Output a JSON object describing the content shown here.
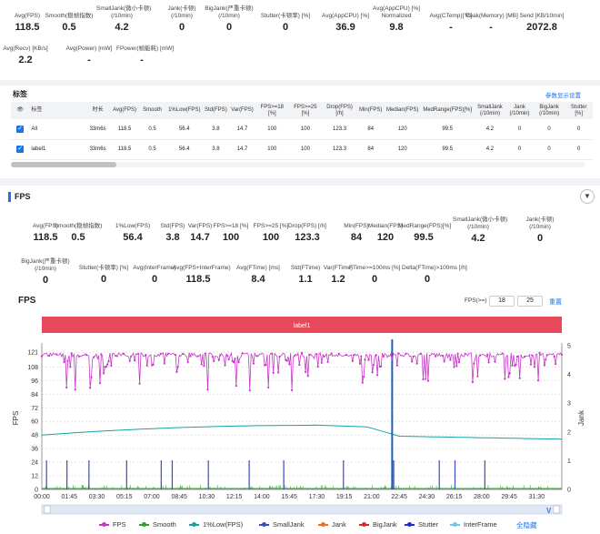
{
  "summary": {
    "items": [
      {
        "label": "Avg(FPS)",
        "value": "118.5"
      },
      {
        "label": "Smooth(稳帧指数)",
        "value": "0.5"
      },
      {
        "label": "SmallJank(微小卡顿)\n(/10min)",
        "value": "4.2"
      },
      {
        "label": "Jank(卡顿)\n(/10min)",
        "value": "0"
      },
      {
        "label": "BigJank(严重卡顿)\n(/10min)",
        "value": "0"
      },
      {
        "label": "Stutter(卡顿率) [%]",
        "value": "0"
      },
      {
        "label": "Avg(AppCPU) [%]",
        "value": "36.9"
      },
      {
        "label": "Avg(AppCPU) [%]\nNormalized",
        "value": "9.8"
      },
      {
        "label": "Avg(CTemp)[°C]",
        "value": "-"
      },
      {
        "label": "Peak(Memory) [MB]",
        "value": "-"
      },
      {
        "label": "Send [KB/10min]",
        "value": "2072.8"
      },
      {
        "label": "Avg(Recv) [KB/s]",
        "value": "2.2"
      },
      {
        "label": "Avg(Power) [mW]",
        "value": "-"
      },
      {
        "label": "FPower(帧能耗) [mW]",
        "value": "-"
      }
    ]
  },
  "tags": {
    "title": "标签",
    "settings_link": "参数显示设置",
    "columns": [
      "标签",
      "时长",
      "Avg(FPS)",
      "Smooth",
      "1%Low(FPS)",
      "Std(FPS)",
      "Var(FPS)",
      "FPS>=18 [%]",
      "FPS>=25 [%]",
      "Drop(FPS) [/h]",
      "Min(FPS)",
      "Median(FPS)",
      "MedRange(FPS)[%]",
      "SmallJank (/10min)",
      "Jank (/10min)",
      "BigJank (/10min)",
      "Stutter [%]"
    ],
    "rows": [
      [
        "All",
        "33m6s",
        "118.5",
        "0.5",
        "56.4",
        "3.8",
        "14.7",
        "100",
        "100",
        "123.3",
        "84",
        "120",
        "99.5",
        "4.2",
        "0",
        "0",
        "0"
      ],
      [
        "label1",
        "33m6s",
        "118.5",
        "0.5",
        "56.4",
        "3.8",
        "14.7",
        "100",
        "100",
        "123.3",
        "84",
        "120",
        "99.5",
        "4.2",
        "0",
        "0",
        "0"
      ]
    ]
  },
  "fps_section": {
    "title": "FPS",
    "stats": [
      {
        "label": "Avg(FPS)",
        "value": "118.5"
      },
      {
        "label": "Smooth(稳帧指数)",
        "value": "0.5"
      },
      {
        "label": "1%Low(FPS)",
        "value": "56.4"
      },
      {
        "label": "Std(FPS)",
        "value": "3.8"
      },
      {
        "label": "Var(FPS)",
        "value": "14.7"
      },
      {
        "label": "FPS>=18 [%]",
        "value": "100"
      },
      {
        "label": "FPS>=25 [%]",
        "value": "100"
      },
      {
        "label": "Drop(FPS) [/h]",
        "value": "123.3"
      },
      {
        "label": "Min(FPS)",
        "value": "84"
      },
      {
        "label": "Median(FPS)",
        "value": "120"
      },
      {
        "label": "MedRange(FPS)[%]",
        "value": "99.5"
      },
      {
        "label": "SmallJank(微小卡顿)\n(/10min)",
        "value": "4.2"
      },
      {
        "label": "Jank(卡顿)\n(/10min)",
        "value": "0"
      },
      {
        "label": "BigJank(严重卡顿)\n(/10min)",
        "value": "0"
      },
      {
        "label": "Stutter(卡顿率) [%]",
        "value": "0"
      },
      {
        "label": "Avg(InterFrame)",
        "value": "0"
      },
      {
        "label": "Avg(FPS+InterFrame)",
        "value": "118.5"
      },
      {
        "label": "Avg(FTime) [ms]",
        "value": "8.4"
      },
      {
        "label": "Std(FTime)",
        "value": "1.1"
      },
      {
        "label": "Var(FTime)",
        "value": "1.2"
      },
      {
        "label": "FTime>=100ms [%]",
        "value": "0"
      },
      {
        "label": "Delta(FTime)>100ms [/h]",
        "value": "0"
      }
    ]
  },
  "chart_header": {
    "title": "FPS",
    "filter_label": "FPS(>=)",
    "filter_value_1": "18",
    "filter_value_2": "25",
    "reset": "重置",
    "band_label": "label1"
  },
  "chart_data": {
    "type": "line",
    "xlabel": "",
    "ylabel": "FPS",
    "y2label": "Jank",
    "yticks": [
      0,
      12,
      24,
      36,
      48,
      60,
      72,
      84,
      96,
      108,
      121
    ],
    "y2ticks": [
      0,
      1,
      2,
      3,
      4,
      5
    ],
    "xticks": [
      "00:00",
      "01:45",
      "03:30",
      "05:15",
      "07:00",
      "08:45",
      "10:30",
      "12:15",
      "14:00",
      "15:45",
      "17:30",
      "19:15",
      "21:00",
      "22:45",
      "24:30",
      "26:15",
      "28:00",
      "29:45",
      "31:30"
    ],
    "ylim": [
      0,
      126
    ],
    "y2lim": [
      0,
      5
    ],
    "series": [
      {
        "name": "FPS",
        "color": "#c737c7",
        "approx_level": 118.5,
        "min": 84
      },
      {
        "name": "Smooth",
        "color": "#2ca02c"
      },
      {
        "name": "1%Low(FPS)",
        "color": "#17a2a0",
        "start": 48,
        "peak": 57,
        "end": 44
      },
      {
        "name": "SmallJank",
        "color": "#3b4cc0",
        "spike_minutes": [
          0.3,
          1.6,
          3.0,
          5.4,
          7.6,
          8.3,
          10.6,
          13.2,
          15.4,
          19.2,
          22.4,
          25.3,
          26.3,
          28.2
        ]
      },
      {
        "name": "Jank",
        "color": "#e8702a"
      },
      {
        "name": "BigJank",
        "color": "#d62728"
      },
      {
        "name": "Stutter",
        "color": "#1f2fd6"
      },
      {
        "name": "InterFrame",
        "color": "#6ec6e8"
      }
    ],
    "big_marker_minute": 22.3,
    "legend_toggle": "全隐藏"
  }
}
